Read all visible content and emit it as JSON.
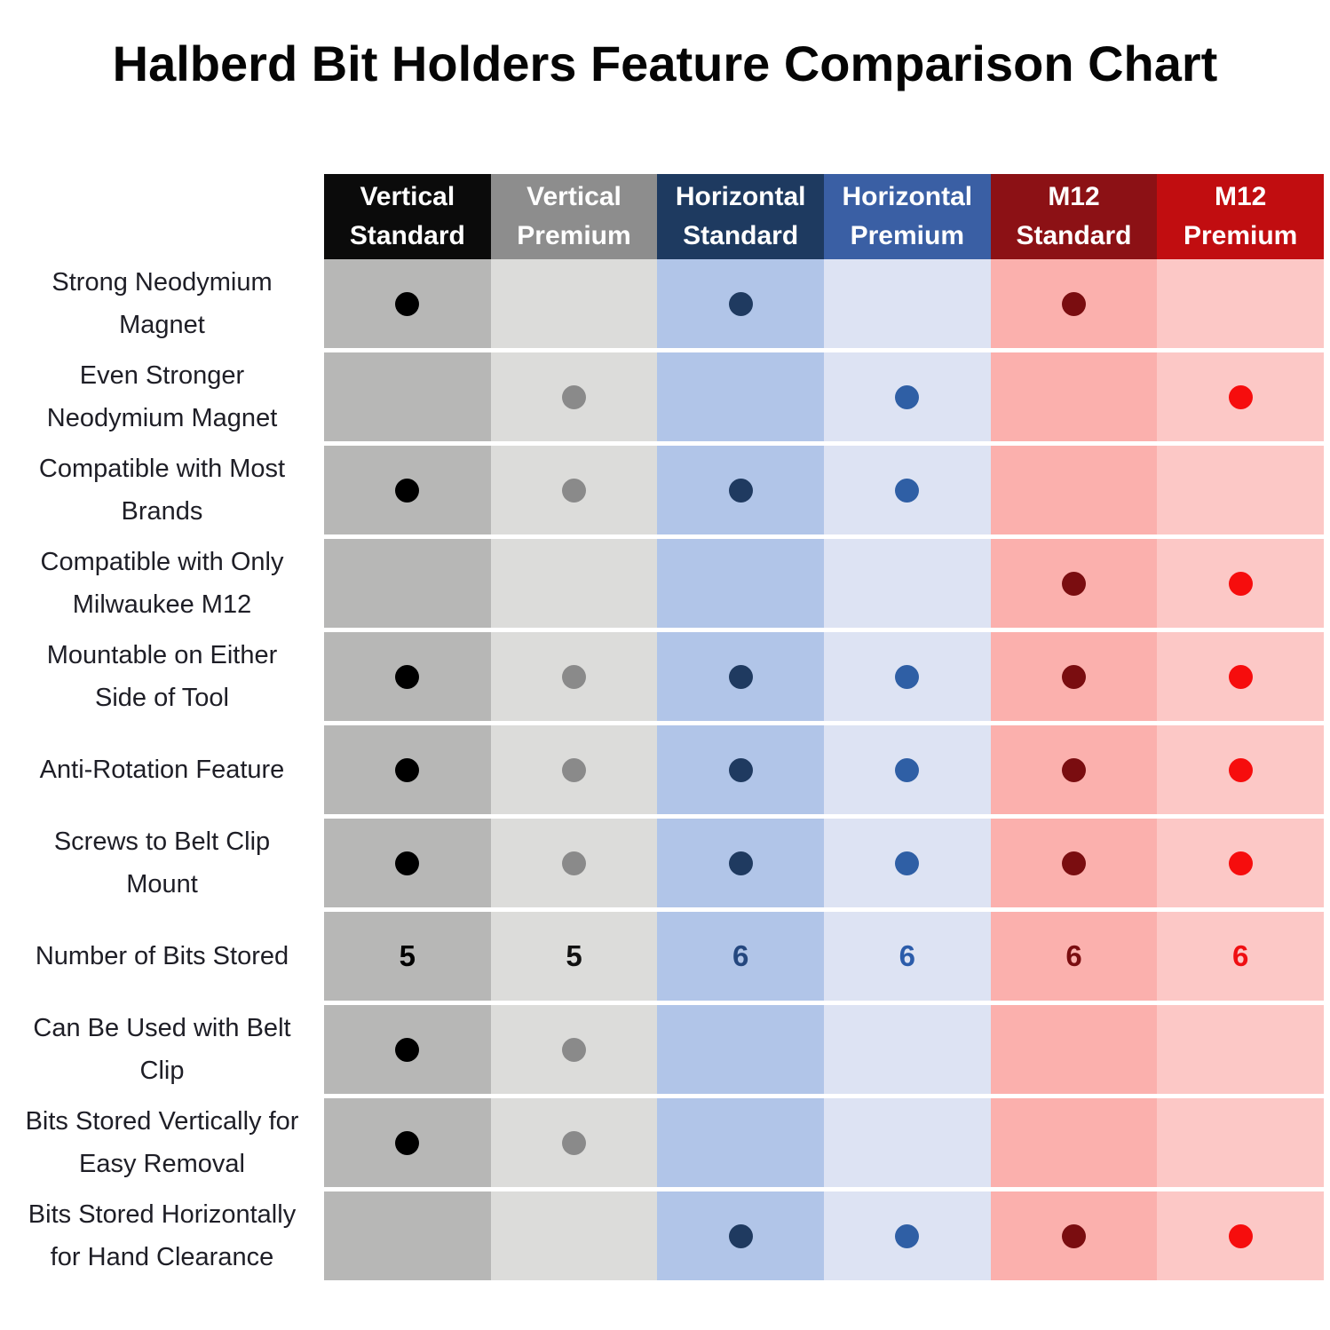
{
  "title": "Halberd Bit Holders Feature Comparison Chart",
  "columns": [
    {
      "id": "vertical-standard",
      "line1": "Vertical",
      "line2": "Standard",
      "header_bg": "#0b0b0b",
      "body_bg": "#b7b7b6",
      "accent": "#000000",
      "value_color": "#000000"
    },
    {
      "id": "vertical-premium",
      "line1": "Vertical",
      "line2": "Premium",
      "header_bg": "#8d8d8d",
      "body_bg": "#dcdcda",
      "accent": "#8a8a8a",
      "value_color": "#111111"
    },
    {
      "id": "horizontal-standard",
      "line1": "Horizontal",
      "line2": "Standard",
      "header_bg": "#1e3a60",
      "body_bg": "#b1c5e8",
      "accent": "#1f3a60",
      "value_color": "#24477e"
    },
    {
      "id": "horizontal-premium",
      "line1": "Horizontal",
      "line2": "Premium",
      "header_bg": "#3a5fa4",
      "body_bg": "#dde3f3",
      "accent": "#2f5fa5",
      "value_color": "#2b5caa"
    },
    {
      "id": "m12-standard",
      "line1": "M12",
      "line2": "Standard",
      "header_bg": "#8c1115",
      "body_bg": "#fbb0ad",
      "accent": "#7a0d10",
      "value_color": "#7a0d10"
    },
    {
      "id": "m12-premium",
      "line1": "M12",
      "line2": "Premium",
      "header_bg": "#c10d10",
      "body_bg": "#fcc8c6",
      "accent": "#f60d0d",
      "value_color": "#ef0f12"
    }
  ],
  "features": [
    {
      "label": "Strong Neodymium\nMagnet",
      "cells": [
        "dot",
        "",
        "dot",
        "",
        "dot",
        ""
      ]
    },
    {
      "label": "Even Stronger\nNeodymium Magnet",
      "cells": [
        "",
        "dot",
        "",
        "dot",
        "",
        "dot"
      ]
    },
    {
      "label": "Compatible with Most\nBrands",
      "cells": [
        "dot",
        "dot",
        "dot",
        "dot",
        "",
        ""
      ]
    },
    {
      "label": "Compatible with Only\nMilwaukee M12",
      "cells": [
        "",
        "",
        "",
        "",
        "dot",
        "dot"
      ]
    },
    {
      "label": "Mountable on Either\nSide of Tool",
      "cells": [
        "dot",
        "dot",
        "dot",
        "dot",
        "dot",
        "dot"
      ]
    },
    {
      "label": "Anti-Rotation Feature",
      "cells": [
        "dot",
        "dot",
        "dot",
        "dot",
        "dot",
        "dot"
      ]
    },
    {
      "label": "Screws to Belt Clip\nMount",
      "cells": [
        "dot",
        "dot",
        "dot",
        "dot",
        "dot",
        "dot"
      ]
    },
    {
      "label": "Number of Bits Stored",
      "cells": [
        "5",
        "5",
        "6",
        "6",
        "6",
        "6"
      ]
    },
    {
      "label": "Can Be Used with Belt\nClip",
      "cells": [
        "dot",
        "dot",
        "",
        "",
        "",
        ""
      ]
    },
    {
      "label": "Bits Stored Vertically for\nEasy Removal",
      "cells": [
        "dot",
        "dot",
        "",
        "",
        "",
        ""
      ]
    },
    {
      "label": "Bits Stored Horizontally\nfor Hand Clearance",
      "cells": [
        "",
        "",
        "dot",
        "dot",
        "dot",
        "dot"
      ]
    }
  ],
  "chart_data": {
    "type": "table",
    "title": "Halberd Bit Holders Feature Comparison Chart",
    "columns": [
      "Vertical Standard",
      "Vertical Premium",
      "Horizontal Standard",
      "Horizontal Premium",
      "M12 Standard",
      "M12 Premium"
    ],
    "rows": [
      "Strong Neodymium Magnet",
      "Even Stronger Neodymium Magnet",
      "Compatible with Most Brands",
      "Compatible with Only Milwaukee M12",
      "Mountable on Either Side of Tool",
      "Anti-Rotation Feature",
      "Screws to Belt Clip Mount",
      "Number of Bits Stored",
      "Can Be Used with Belt Clip",
      "Bits Stored Vertically for Easy Removal",
      "Bits Stored Horizontally for Hand Clearance"
    ],
    "matrix": [
      [
        true,
        false,
        true,
        false,
        true,
        false
      ],
      [
        false,
        true,
        false,
        true,
        false,
        true
      ],
      [
        true,
        true,
        true,
        true,
        false,
        false
      ],
      [
        false,
        false,
        false,
        false,
        true,
        true
      ],
      [
        true,
        true,
        true,
        true,
        true,
        true
      ],
      [
        true,
        true,
        true,
        true,
        true,
        true
      ],
      [
        true,
        true,
        true,
        true,
        true,
        true
      ],
      [
        5,
        5,
        6,
        6,
        6,
        6
      ],
      [
        true,
        true,
        false,
        false,
        false,
        false
      ],
      [
        true,
        true,
        false,
        false,
        false,
        false
      ],
      [
        false,
        false,
        true,
        true,
        true,
        true
      ]
    ],
    "legend_position": "none",
    "grid": "white row separators between feature rows"
  }
}
